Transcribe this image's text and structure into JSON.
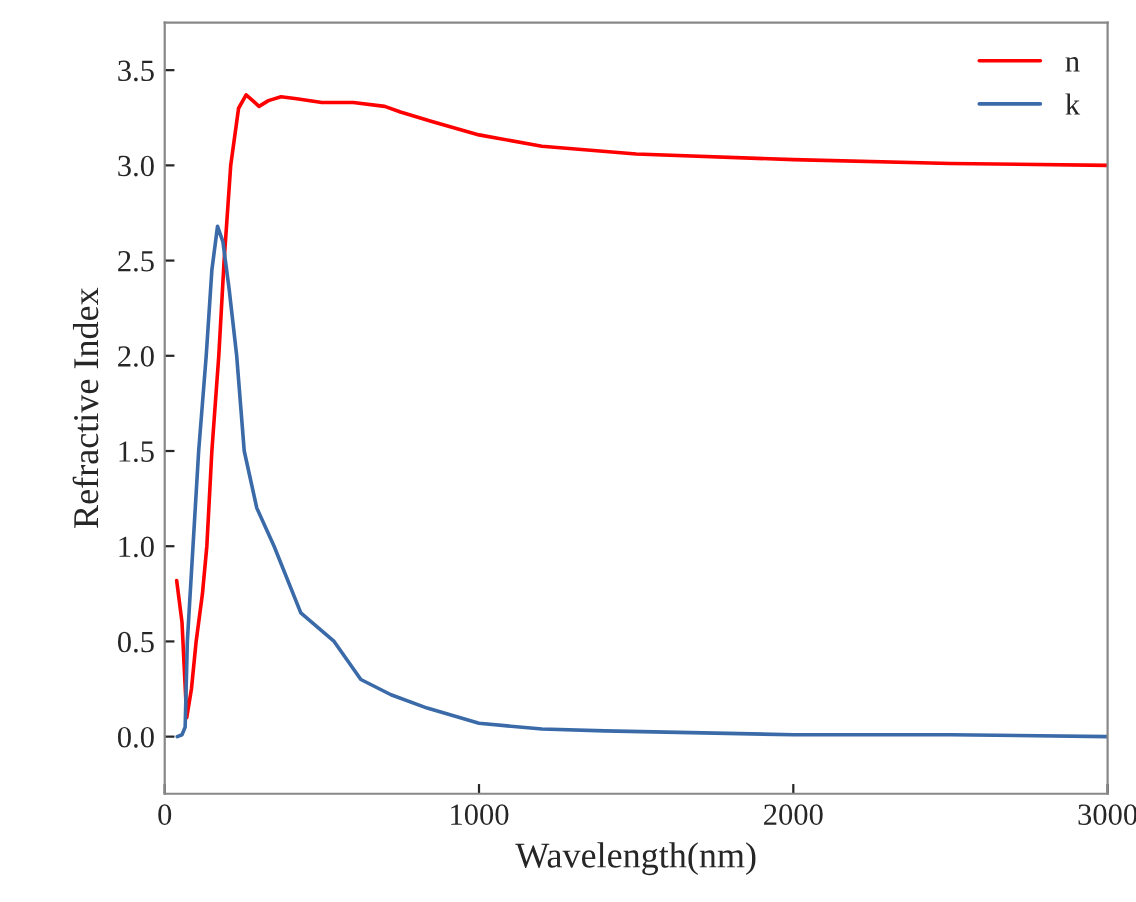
{
  "chart_data": {
    "type": "line",
    "xlabel": "Wavelength(nm)",
    "ylabel": "Refractive Index",
    "xlim": [
      0,
      3000
    ],
    "xticks": [
      0,
      1000,
      2000,
      3000
    ],
    "ylim": [
      -0.3,
      3.75
    ],
    "yticks": [
      {
        "value": 0,
        "label": "0.0"
      },
      0.5,
      {
        "value": 1,
        "label": "1.0"
      },
      1.5,
      {
        "value": 2,
        "label": "2.0"
      },
      2.5,
      {
        "value": 3,
        "label": "3.0"
      },
      3.5
    ],
    "legend": "top right",
    "grid": false,
    "series": [
      {
        "name": "n",
        "color": "#ff0000",
        "x": [
          38,
          55,
          70,
          85,
          100,
          120,
          134,
          150,
          172,
          189,
          210,
          235,
          259,
          280,
          300,
          330,
          370,
          420,
          500,
          600,
          700,
          750,
          850,
          1000,
          1200,
          1500,
          2000,
          2500,
          3000
        ],
        "values": [
          0.82,
          0.6,
          0.1,
          0.25,
          0.5,
          0.75,
          1.0,
          1.5,
          2.0,
          2.5,
          3.0,
          3.3,
          3.37,
          3.34,
          3.31,
          3.34,
          3.36,
          3.35,
          3.33,
          3.33,
          3.31,
          3.28,
          3.23,
          3.16,
          3.1,
          3.06,
          3.03,
          3.01,
          3.0
        ]
      },
      {
        "name": "k",
        "color": "#3a6aa8",
        "x": [
          40,
          55,
          65,
          72,
          90,
          108,
          132,
          150,
          168,
          185,
          205,
          229,
          253,
          293,
          348,
          433,
          539,
          624,
          720,
          835,
          1000,
          1200,
          1400,
          2000,
          2500,
          3000
        ],
        "values": [
          0.0,
          0.01,
          0.05,
          0.5,
          1.0,
          1.5,
          2.0,
          2.45,
          2.68,
          2.6,
          2.35,
          2.0,
          1.5,
          1.2,
          1.0,
          0.65,
          0.5,
          0.3,
          0.22,
          0.15,
          0.07,
          0.04,
          0.03,
          0.01,
          0.01,
          0.0
        ]
      }
    ]
  }
}
